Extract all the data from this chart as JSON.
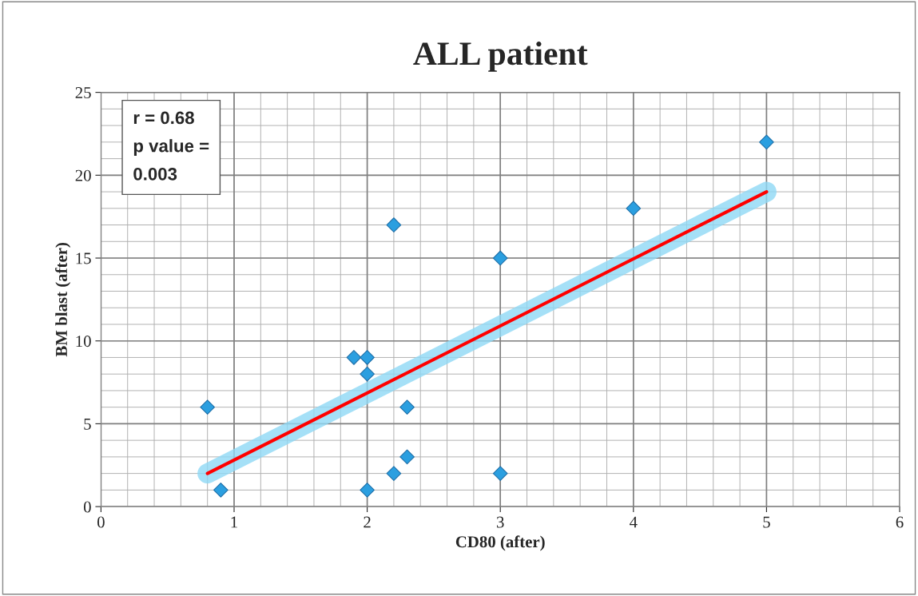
{
  "chart_data": {
    "type": "scatter",
    "title": "ALL patient",
    "xlabel": "CD80 (after)",
    "ylabel": "BM blast (after)",
    "series": [
      {
        "color": "#2b9fe0",
        "marker": "diamond",
        "x": [
          0.8,
          0.9,
          1.9,
          2,
          2,
          2,
          2.2,
          2.2,
          2.3,
          2.3,
          3,
          3,
          4,
          5
        ],
        "values": [
          6,
          1,
          9,
          9,
          8,
          1,
          17,
          2,
          6,
          3,
          15,
          2,
          18,
          22
        ]
      },
      {
        "type": "line",
        "color": "#ff0000",
        "marker": "none",
        "line_style": "solid",
        "x": [
          0.8,
          5
        ],
        "values": [
          2,
          19
        ]
      }
    ],
    "xlim": [
      0,
      6
    ],
    "xticks": [
      0,
      1,
      2,
      3,
      4,
      5,
      6
    ],
    "ylim": [
      0,
      25
    ],
    "yticks": [
      0,
      5,
      10,
      15,
      20,
      25
    ],
    "grid": true,
    "legend": false,
    "annotations": [
      "r = 0.68\np value =\n0.003"
    ]
  }
}
